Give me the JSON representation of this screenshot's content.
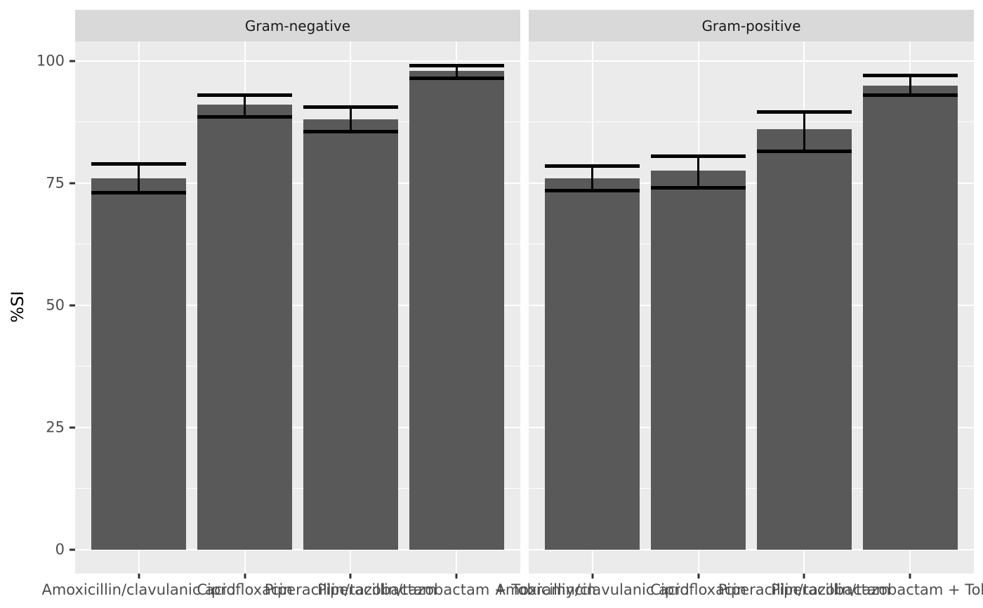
{
  "chart_data": {
    "type": "bar",
    "title": "",
    "xlabel": "",
    "ylabel": "%SI",
    "ylim": [
      0,
      100
    ],
    "y_ticks": [
      0,
      25,
      50,
      75,
      100
    ],
    "y_minor_ticks": [
      12.5,
      37.5,
      62.5,
      87.5
    ],
    "grid": true,
    "legend": "none",
    "categories": [
      "Amoxicillin/clavulanic acid",
      "Ciprofloxacin",
      "Piperacillin/tazobactam",
      "Piperacillin/tazobactam + Tobramycin"
    ],
    "facets": [
      {
        "label": "Gram-negative",
        "values": [
          76,
          91,
          88,
          98
        ],
        "ci_lower": [
          73,
          88.5,
          85.5,
          96.5
        ],
        "ci_upper": [
          79,
          93,
          90.5,
          99
        ]
      },
      {
        "label": "Gram-positive",
        "values": [
          76,
          77.5,
          86,
          95
        ],
        "ci_lower": [
          73.5,
          74,
          81.5,
          93
        ],
        "ci_upper": [
          78.5,
          80.5,
          89.5,
          97
        ]
      }
    ],
    "style": {
      "bar_fill": "#595959",
      "error_bar_color": "#000000",
      "panel_bg": "#ebebeb",
      "strip_bg": "#d9d9d9",
      "grid_color": "#ffffff",
      "axis_text_color": "#4d4d4d",
      "strip_text_color": "#1a1a1a",
      "axis_title_color": "#000000",
      "tick_color": "#333333",
      "plot_bg": "#ffffff"
    }
  }
}
